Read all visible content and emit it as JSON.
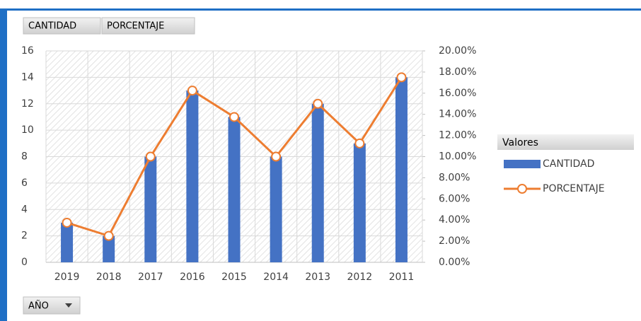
{
  "chart_data": {
    "type": "bar-line",
    "field_buttons": [
      "CANTIDAD",
      "PORCENTAJE"
    ],
    "axis_field_button": "AÑO",
    "legend_title": "Valores",
    "legend": "right",
    "grid": true,
    "categories": [
      "2019",
      "2018",
      "2017",
      "2016",
      "2015",
      "2014",
      "2013",
      "2012",
      "2011"
    ],
    "series": [
      {
        "name": "CANTIDAD",
        "type": "bar",
        "color": "#4472c4",
        "values": [
          3,
          2,
          8,
          13,
          11,
          8,
          12,
          9,
          14
        ]
      },
      {
        "name": "PORCENTAJE",
        "type": "line",
        "axis": "y2",
        "color": "#ed7d31",
        "values": [
          3.75,
          2.5,
          10,
          16.25,
          13.75,
          10,
          15,
          11.25,
          17.5
        ]
      }
    ],
    "ylim": [
      0,
      16
    ],
    "yticks": [
      0,
      2,
      4,
      6,
      8,
      10,
      12,
      14,
      16
    ],
    "y2lim": [
      0,
      20
    ],
    "y2ticks": [
      {
        "value": 0,
        "label": "0.00%"
      },
      {
        "value": 2,
        "label": "2.00%"
      },
      {
        "value": 4,
        "label": "4.00%"
      },
      {
        "value": 6,
        "label": "6.00%"
      },
      {
        "value": 8,
        "label": "8.00%"
      },
      {
        "value": 10,
        "label": "10.00%"
      },
      {
        "value": 12,
        "label": "12.00%"
      },
      {
        "value": 14,
        "label": "14.00%"
      },
      {
        "value": 16,
        "label": "16.00%"
      },
      {
        "value": 18,
        "label": "18.00%"
      },
      {
        "value": 20,
        "label": "20.00%"
      }
    ]
  }
}
